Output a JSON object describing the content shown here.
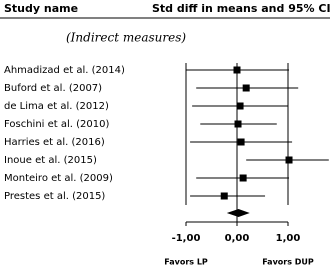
{
  "chart_data": {
    "type": "forest",
    "category_header": "Study name",
    "title": "Std diff in means and 95% CI",
    "subtitle": "(Indirect measures)",
    "categories": [
      "Ahmadizad et al. (2014)",
      "Buford et al. (2007)",
      "de Lima et al. (2012)",
      "Foschini et al. (2010)",
      "Harries et al. (2016)",
      "Inoue et al. (2015)",
      "Monteiro et al. (2009)",
      "Prestes et al. (2015)"
    ],
    "values": [
      0.0,
      0.18,
      0.06,
      0.02,
      0.08,
      1.02,
      0.12,
      -0.25
    ],
    "ci_low": [
      -1.0,
      -0.8,
      -0.88,
      -0.72,
      -0.92,
      0.18,
      -0.8,
      -0.92
    ],
    "ci_high": [
      1.02,
      1.2,
      1.0,
      0.78,
      1.08,
      1.8,
      1.02,
      0.55
    ],
    "summary": {
      "value": 0.03,
      "low": -0.2,
      "high": 0.25
    },
    "color": "#000000",
    "xlim": [
      -1,
      1
    ],
    "xticks": [
      {
        "value": -1,
        "label": "-1,00"
      },
      {
        "value": 0,
        "label": "0,00"
      },
      {
        "value": 1,
        "label": "1,00"
      }
    ],
    "annotations": [
      "Favors LP",
      "Favors DUP"
    ]
  }
}
